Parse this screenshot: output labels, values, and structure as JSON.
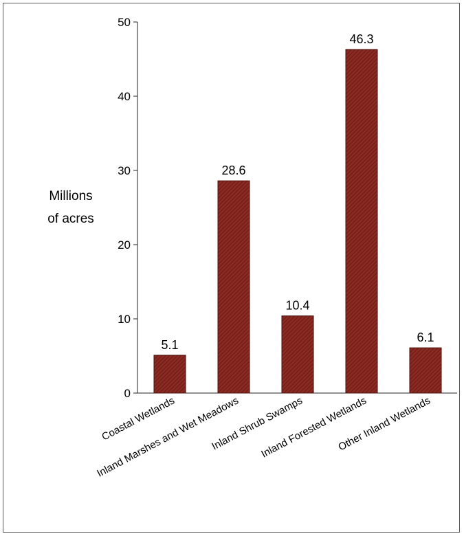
{
  "chart_data": {
    "type": "bar",
    "title": "",
    "xlabel": "",
    "ylabel": "Millions of acres",
    "ylabel_lines": [
      "Millions",
      "of acres"
    ],
    "categories": [
      "Coastal Wetlands",
      "Inland Marshes and Wet Meadows",
      "Inland Shrub Swamps",
      "Inland Forested Wetlands",
      "Other Inland Wetlands"
    ],
    "values": [
      5.1,
      28.6,
      10.4,
      46.3,
      6.1
    ],
    "data_labels": [
      "5.1",
      "28.6",
      "10.4",
      "46.3",
      "6.1"
    ],
    "ylim": [
      0,
      50
    ],
    "yticks": [
      0,
      10,
      20,
      30,
      40,
      50
    ],
    "grid": false,
    "legend": "none",
    "bar_color": "#8b2a22",
    "bar_pattern": "diagonal-hatch"
  }
}
